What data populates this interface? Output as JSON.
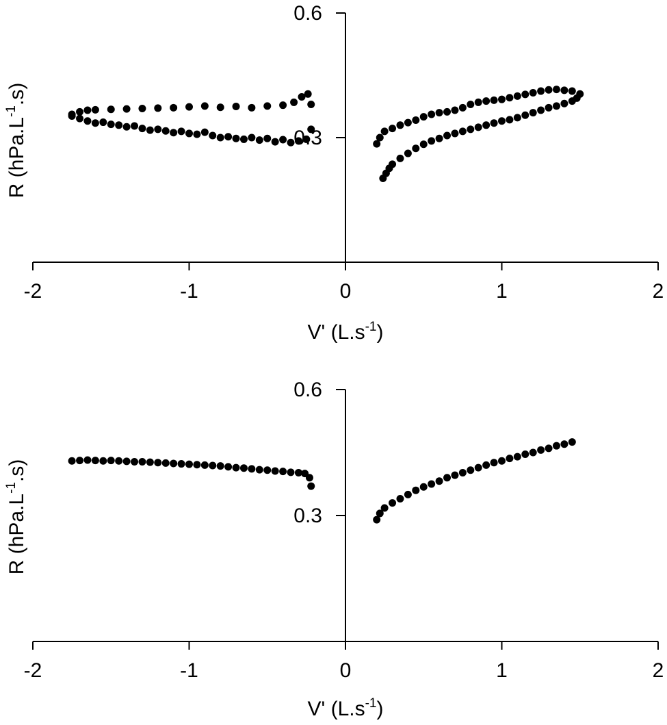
{
  "chart_data": [
    {
      "type": "scatter",
      "xlabel": "V' (L.s",
      "xlabel_sup": "-1",
      "xlabel_close": ")",
      "ylabel_pre": "R (hPa.L",
      "ylabel_sup": "-1",
      "ylabel_post": ".s)",
      "xlim": [
        -2,
        2
      ],
      "ylim": [
        0,
        0.6
      ],
      "xticks": [
        -2,
        -1,
        0,
        1,
        2
      ],
      "xtick_labels": [
        "-2",
        "-1",
        "0",
        "1",
        "2"
      ],
      "yticks": [
        0.6,
        0.3
      ],
      "ytick_labels": [
        "0.6",
        "0.3"
      ],
      "grid": false,
      "marker_color": "#000000",
      "series": [
        {
          "points": [
            [
              -1.75,
              0.356
            ],
            [
              -1.7,
              0.362
            ],
            [
              -1.65,
              0.366
            ],
            [
              -1.6,
              0.367
            ],
            [
              -1.5,
              0.368
            ],
            [
              -1.4,
              0.369
            ],
            [
              -1.3,
              0.37
            ],
            [
              -1.2,
              0.371
            ],
            [
              -1.1,
              0.372
            ],
            [
              -1.0,
              0.374
            ],
            [
              -0.9,
              0.376
            ],
            [
              -0.8,
              0.373
            ],
            [
              -0.7,
              0.375
            ],
            [
              -0.6,
              0.372
            ],
            [
              -0.5,
              0.376
            ],
            [
              -0.4,
              0.378
            ],
            [
              -0.33,
              0.385
            ],
            [
              -0.28,
              0.398
            ],
            [
              -0.24,
              0.405
            ],
            [
              -0.22,
              0.38
            ],
            [
              -1.75,
              0.352
            ],
            [
              -1.7,
              0.346
            ],
            [
              -1.65,
              0.34
            ],
            [
              -1.6,
              0.335
            ],
            [
              -1.55,
              0.337
            ],
            [
              -1.5,
              0.332
            ],
            [
              -1.45,
              0.33
            ],
            [
              -1.4,
              0.326
            ],
            [
              -1.35,
              0.328
            ],
            [
              -1.3,
              0.322
            ],
            [
              -1.25,
              0.318
            ],
            [
              -1.2,
              0.32
            ],
            [
              -1.15,
              0.316
            ],
            [
              -1.1,
              0.312
            ],
            [
              -1.05,
              0.315
            ],
            [
              -1.0,
              0.31
            ],
            [
              -0.95,
              0.308
            ],
            [
              -0.9,
              0.313
            ],
            [
              -0.85,
              0.305
            ],
            [
              -0.8,
              0.3
            ],
            [
              -0.75,
              0.302
            ],
            [
              -0.7,
              0.298
            ],
            [
              -0.65,
              0.296
            ],
            [
              -0.6,
              0.3
            ],
            [
              -0.55,
              0.294
            ],
            [
              -0.5,
              0.298
            ],
            [
              -0.45,
              0.29
            ],
            [
              -0.4,
              0.295
            ],
            [
              -0.35,
              0.288
            ],
            [
              -0.3,
              0.292
            ],
            [
              -0.25,
              0.296
            ],
            [
              -0.22,
              0.32
            ],
            [
              0.2,
              0.285
            ],
            [
              0.22,
              0.3
            ],
            [
              0.25,
              0.315
            ],
            [
              0.3,
              0.322
            ],
            [
              0.35,
              0.33
            ],
            [
              0.4,
              0.336
            ],
            [
              0.45,
              0.342
            ],
            [
              0.5,
              0.35
            ],
            [
              0.55,
              0.356
            ],
            [
              0.6,
              0.36
            ],
            [
              0.65,
              0.362
            ],
            [
              0.7,
              0.366
            ],
            [
              0.75,
              0.372
            ],
            [
              0.8,
              0.38
            ],
            [
              0.85,
              0.385
            ],
            [
              0.9,
              0.388
            ],
            [
              0.95,
              0.39
            ],
            [
              1.0,
              0.392
            ],
            [
              1.05,
              0.396
            ],
            [
              1.1,
              0.4
            ],
            [
              1.15,
              0.404
            ],
            [
              1.2,
              0.408
            ],
            [
              1.25,
              0.412
            ],
            [
              1.3,
              0.415
            ],
            [
              1.35,
              0.416
            ],
            [
              1.4,
              0.414
            ],
            [
              1.45,
              0.412
            ],
            [
              1.5,
              0.405
            ],
            [
              1.48,
              0.395
            ],
            [
              1.45,
              0.388
            ],
            [
              1.4,
              0.382
            ],
            [
              1.35,
              0.376
            ],
            [
              1.3,
              0.372
            ],
            [
              1.25,
              0.366
            ],
            [
              1.2,
              0.36
            ],
            [
              1.15,
              0.354
            ],
            [
              1.1,
              0.348
            ],
            [
              1.05,
              0.343
            ],
            [
              1.0,
              0.34
            ],
            [
              0.95,
              0.335
            ],
            [
              0.9,
              0.33
            ],
            [
              0.85,
              0.325
            ],
            [
              0.8,
              0.32
            ],
            [
              0.75,
              0.315
            ],
            [
              0.7,
              0.31
            ],
            [
              0.65,
              0.305
            ],
            [
              0.6,
              0.298
            ],
            [
              0.55,
              0.292
            ],
            [
              0.5,
              0.284
            ],
            [
              0.45,
              0.274
            ],
            [
              0.4,
              0.262
            ],
            [
              0.35,
              0.25
            ],
            [
              0.3,
              0.236
            ],
            [
              0.28,
              0.226
            ],
            [
              0.26,
              0.214
            ],
            [
              0.24,
              0.202
            ]
          ]
        }
      ]
    },
    {
      "type": "scatter",
      "xlabel": "V' (L.s",
      "xlabel_sup": "-1",
      "xlabel_close": ")",
      "ylabel_pre": "R (hPa.L",
      "ylabel_sup": "-1",
      "ylabel_post": ".s)",
      "xlim": [
        -2,
        2
      ],
      "ylim": [
        0,
        0.6
      ],
      "xticks": [
        -2,
        -1,
        0,
        1,
        2
      ],
      "xtick_labels": [
        "-2",
        "-1",
        "0",
        "1",
        "2"
      ],
      "yticks": [
        0.6,
        0.3
      ],
      "ytick_labels": [
        "0.6",
        "0.3"
      ],
      "grid": false,
      "marker_color": "#000000",
      "series": [
        {
          "points": [
            [
              -1.75,
              0.43
            ],
            [
              -1.7,
              0.431
            ],
            [
              -1.65,
              0.432
            ],
            [
              -1.6,
              0.431
            ],
            [
              -1.55,
              0.43
            ],
            [
              -1.5,
              0.431
            ],
            [
              -1.45,
              0.43
            ],
            [
              -1.4,
              0.429
            ],
            [
              -1.35,
              0.428
            ],
            [
              -1.3,
              0.428
            ],
            [
              -1.25,
              0.427
            ],
            [
              -1.2,
              0.426
            ],
            [
              -1.15,
              0.425
            ],
            [
              -1.1,
              0.424
            ],
            [
              -1.05,
              0.423
            ],
            [
              -1.0,
              0.422
            ],
            [
              -0.95,
              0.421
            ],
            [
              -0.9,
              0.42
            ],
            [
              -0.85,
              0.419
            ],
            [
              -0.8,
              0.418
            ],
            [
              -0.75,
              0.416
            ],
            [
              -0.7,
              0.414
            ],
            [
              -0.65,
              0.413
            ],
            [
              -0.6,
              0.411
            ],
            [
              -0.55,
              0.409
            ],
            [
              -0.5,
              0.408
            ],
            [
              -0.45,
              0.406
            ],
            [
              -0.4,
              0.405
            ],
            [
              -0.35,
              0.403
            ],
            [
              -0.3,
              0.402
            ],
            [
              -0.26,
              0.4
            ],
            [
              -0.23,
              0.39
            ],
            [
              -0.22,
              0.37
            ],
            [
              0.2,
              0.29
            ],
            [
              0.22,
              0.305
            ],
            [
              0.25,
              0.318
            ],
            [
              0.3,
              0.33
            ],
            [
              0.35,
              0.34
            ],
            [
              0.4,
              0.35
            ],
            [
              0.45,
              0.36
            ],
            [
              0.5,
              0.368
            ],
            [
              0.55,
              0.375
            ],
            [
              0.6,
              0.382
            ],
            [
              0.65,
              0.39
            ],
            [
              0.7,
              0.396
            ],
            [
              0.75,
              0.402
            ],
            [
              0.8,
              0.408
            ],
            [
              0.85,
              0.414
            ],
            [
              0.9,
              0.42
            ],
            [
              0.95,
              0.426
            ],
            [
              1.0,
              0.43
            ],
            [
              1.05,
              0.436
            ],
            [
              1.1,
              0.44
            ],
            [
              1.15,
              0.446
            ],
            [
              1.2,
              0.45
            ],
            [
              1.25,
              0.456
            ],
            [
              1.3,
              0.46
            ],
            [
              1.35,
              0.466
            ],
            [
              1.4,
              0.47
            ],
            [
              1.45,
              0.475
            ]
          ]
        }
      ]
    }
  ]
}
